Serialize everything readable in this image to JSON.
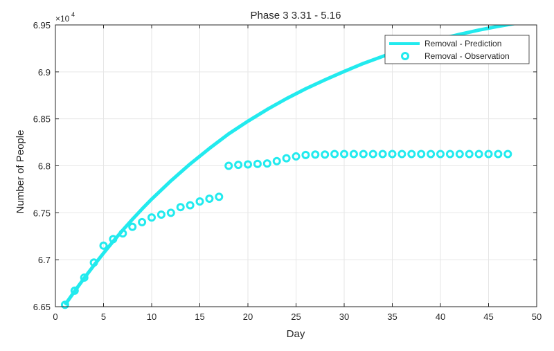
{
  "chart_data": {
    "type": "line",
    "title": "Phase 3 3.31 - 5.16",
    "xlabel": "Day",
    "ylabel": "Number of People",
    "y_exponent_base": "×10",
    "y_exponent_power": "4",
    "xlim": [
      0,
      50
    ],
    "ylim": [
      6.65,
      6.95
    ],
    "x_ticks": [
      0,
      5,
      10,
      15,
      20,
      25,
      30,
      35,
      40,
      45,
      50
    ],
    "y_ticks": [
      6.65,
      6.7,
      6.75,
      6.8,
      6.85,
      6.9,
      6.95
    ],
    "x_tick_labels": [
      "0",
      "5",
      "10",
      "15",
      "20",
      "25",
      "30",
      "35",
      "40",
      "45",
      "50"
    ],
    "y_tick_labels": [
      "6.65",
      "6.7",
      "6.75",
      "6.8",
      "6.85",
      "6.9",
      "6.95"
    ],
    "grid": true,
    "legend_position": "top-right",
    "colors": {
      "series": "#22EAEE",
      "axis": "#262626",
      "grid": "#e6e6e6"
    },
    "series": [
      {
        "name": "Removal - Prediction",
        "style": "line",
        "x": [
          1,
          2,
          3,
          4,
          5,
          6,
          7,
          8,
          9,
          10,
          12,
          14,
          16,
          18,
          20,
          22,
          24,
          26,
          28,
          30,
          32,
          34,
          36,
          38,
          40,
          42,
          44,
          46,
          48,
          50
        ],
        "y": [
          6.652,
          6.6665,
          6.6805,
          6.694,
          6.707,
          6.7195,
          6.7315,
          6.743,
          6.754,
          6.7645,
          6.784,
          6.802,
          6.8185,
          6.834,
          6.8475,
          6.86,
          6.8715,
          6.882,
          6.8915,
          6.9005,
          6.909,
          6.9165,
          6.9235,
          6.9295,
          6.935,
          6.94,
          6.9445,
          6.9485,
          6.952,
          6.9545
        ]
      },
      {
        "name": "Removal - Observation",
        "style": "marker",
        "x": [
          1,
          2,
          3,
          4,
          5,
          6,
          7,
          8,
          9,
          10,
          11,
          12,
          13,
          14,
          15,
          16,
          17,
          18,
          19,
          20,
          21,
          22,
          23,
          24,
          25,
          26,
          27,
          28,
          29,
          30,
          31,
          32,
          33,
          34,
          35,
          36,
          37,
          38,
          39,
          40,
          41,
          42,
          43,
          44,
          45,
          46,
          47
        ],
        "y": [
          6.652,
          6.667,
          6.681,
          6.697,
          6.715,
          6.722,
          6.728,
          6.735,
          6.74,
          6.745,
          6.748,
          6.75,
          6.756,
          6.758,
          6.762,
          6.765,
          6.767,
          6.8,
          6.801,
          6.8015,
          6.802,
          6.8025,
          6.805,
          6.808,
          6.81,
          6.8115,
          6.812,
          6.812,
          6.8125,
          6.8125,
          6.8125,
          6.8125,
          6.8125,
          6.8125,
          6.8125,
          6.8125,
          6.8125,
          6.8125,
          6.8125,
          6.8125,
          6.8125,
          6.8125,
          6.8125,
          6.8125,
          6.8125,
          6.8125,
          6.8125
        ]
      }
    ]
  }
}
